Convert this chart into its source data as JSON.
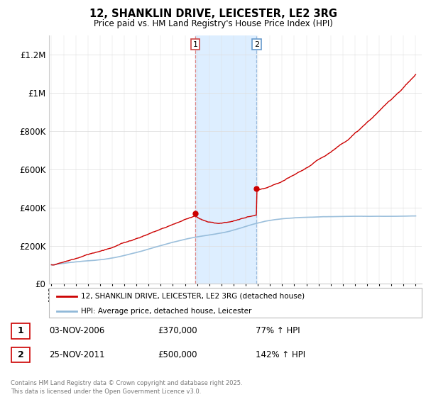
{
  "title": "12, SHANKLIN DRIVE, LEICESTER, LE2 3RG",
  "subtitle": "Price paid vs. HM Land Registry's House Price Index (HPI)",
  "ylabel_ticks": [
    "£0",
    "£200K",
    "£400K",
    "£600K",
    "£800K",
    "£1M",
    "£1.2M"
  ],
  "ylim": [
    0,
    1300000
  ],
  "yticks": [
    0,
    200000,
    400000,
    600000,
    800000,
    1000000,
    1200000
  ],
  "background_color": "#ffffff",
  "grid_color": "#cccccc",
  "hpi_color": "#90b8d8",
  "price_color": "#cc0000",
  "shade_color": "#ddeeff",
  "transaction1_x": 2006.84,
  "transaction1_price": 370000,
  "transaction2_x": 2011.9,
  "transaction2_price": 500000,
  "legend_entry1": "12, SHANKLIN DRIVE, LEICESTER, LE2 3RG (detached house)",
  "legend_entry2": "HPI: Average price, detached house, Leicester",
  "annotation1_date": "03-NOV-2006",
  "annotation1_price": "£370,000",
  "annotation1_hpi": "77% ↑ HPI",
  "annotation2_date": "25-NOV-2011",
  "annotation2_price": "£500,000",
  "annotation2_hpi": "142% ↑ HPI",
  "footer": "Contains HM Land Registry data © Crown copyright and database right 2025.\nThis data is licensed under the Open Government Licence v3.0."
}
